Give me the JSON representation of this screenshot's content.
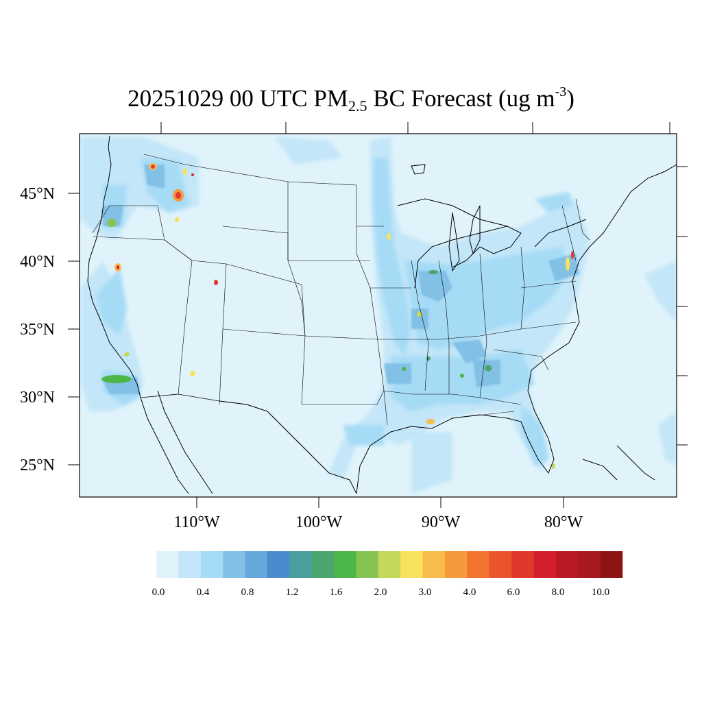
{
  "title": {
    "prefix": "20251029 00 UTC PM",
    "subscript": "2.5",
    "middle": " BC Forecast (ug m",
    "superscript": "-3",
    "suffix": ")"
  },
  "map": {
    "background_color": "#e0f3fb",
    "frame_color": "#000000",
    "lat_labels": [
      "45°N",
      "40°N",
      "35°N",
      "30°N",
      "25°N"
    ],
    "lon_labels": [
      "110°W",
      "100°W",
      "90°W",
      "80°W"
    ]
  },
  "colorbar": {
    "colors": [
      "#e0f3fb",
      "#c3e6f8",
      "#a6dbf6",
      "#82c0e6",
      "#66a8dc",
      "#4a8bce",
      "#4a9e9e",
      "#4aa66c",
      "#4cb648",
      "#86c452",
      "#c6d85a",
      "#f8e25c",
      "#f8bc4c",
      "#f6983c",
      "#f2732e",
      "#ea542c",
      "#e2382c",
      "#d4202c",
      "#ba1a26",
      "#a81a20",
      "#8c1414"
    ],
    "tick_labels": [
      "0.0",
      "0.4",
      "0.8",
      "1.2",
      "1.6",
      "2.0",
      "3.0",
      "4.0",
      "6.0",
      "8.0",
      "10.0"
    ]
  }
}
